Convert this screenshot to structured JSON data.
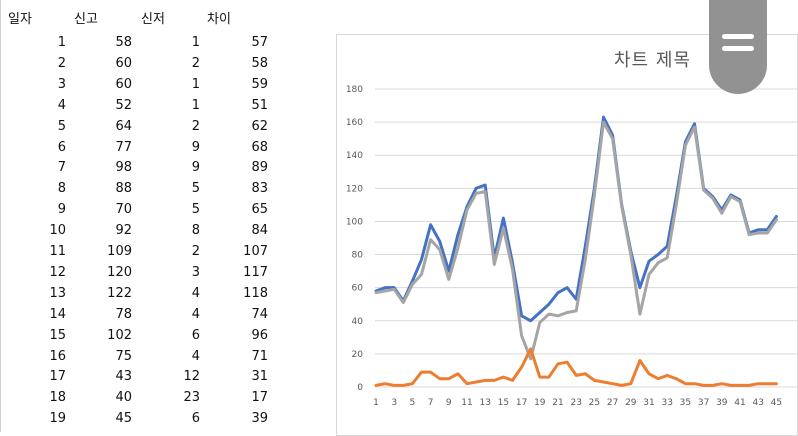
{
  "table": {
    "headers": {
      "day": "일자",
      "col_a": "신고",
      "col_b": "신저",
      "diff": "차이"
    },
    "rows": [
      {
        "day": "1",
        "a": "58",
        "b": "1",
        "diff": "57"
      },
      {
        "day": "2",
        "a": "60",
        "b": "2",
        "diff": "58"
      },
      {
        "day": "3",
        "a": "60",
        "b": "1",
        "diff": "59"
      },
      {
        "day": "4",
        "a": "52",
        "b": "1",
        "diff": "51"
      },
      {
        "day": "5",
        "a": "64",
        "b": "2",
        "diff": "62"
      },
      {
        "day": "6",
        "a": "77",
        "b": "9",
        "diff": "68"
      },
      {
        "day": "7",
        "a": "98",
        "b": "9",
        "diff": "89"
      },
      {
        "day": "8",
        "a": "88",
        "b": "5",
        "diff": "83"
      },
      {
        "day": "9",
        "a": "70",
        "b": "5",
        "diff": "65"
      },
      {
        "day": "10",
        "a": "92",
        "b": "8",
        "diff": "84"
      },
      {
        "day": "11",
        "a": "109",
        "b": "2",
        "diff": "107"
      },
      {
        "day": "12",
        "a": "120",
        "b": "3",
        "diff": "117"
      },
      {
        "day": "13",
        "a": "122",
        "b": "4",
        "diff": "118"
      },
      {
        "day": "14",
        "a": "78",
        "b": "4",
        "diff": "74"
      },
      {
        "day": "15",
        "a": "102",
        "b": "6",
        "diff": "96"
      },
      {
        "day": "16",
        "a": "75",
        "b": "4",
        "diff": "71"
      },
      {
        "day": "17",
        "a": "43",
        "b": "12",
        "diff": "31"
      },
      {
        "day": "18",
        "a": "40",
        "b": "23",
        "diff": "17"
      },
      {
        "day": "19",
        "a": "45",
        "b": "6",
        "diff": "39"
      }
    ]
  },
  "colors": {
    "series_a": "#4472c4",
    "series_b": "#ed7d31",
    "series_diff": "#a5a5a5",
    "grid": "#d9d9d9",
    "axis_text": "#595959",
    "menu_button": "#8d8d8d"
  },
  "chart_data": {
    "type": "line",
    "title": "차트 제목",
    "ylim": [
      0,
      180
    ],
    "yticks": [
      0,
      20,
      40,
      60,
      80,
      100,
      120,
      140,
      160,
      180
    ],
    "x": [
      1,
      2,
      3,
      4,
      5,
      6,
      7,
      8,
      9,
      10,
      11,
      12,
      13,
      14,
      15,
      16,
      17,
      18,
      19,
      20,
      21,
      22,
      23,
      24,
      25,
      26,
      27,
      28,
      29,
      30,
      31,
      32,
      33,
      34,
      35,
      36,
      37,
      38,
      39,
      40,
      41,
      42,
      43,
      44,
      45
    ],
    "xtick_labels": [
      "1",
      "3",
      "5",
      "7",
      "9",
      "11",
      "13",
      "15",
      "17",
      "19",
      "21",
      "23",
      "25",
      "27",
      "29",
      "31",
      "33",
      "35",
      "37",
      "39",
      "41",
      "43",
      "45"
    ],
    "grid": true,
    "legend": "none",
    "series": [
      {
        "values": [
          58,
          60,
          60,
          52,
          64,
          77,
          98,
          88,
          70,
          92,
          109,
          120,
          122,
          78,
          102,
          75,
          43,
          40,
          45,
          50,
          57,
          60,
          53,
          85,
          120,
          163,
          152,
          110,
          82,
          60,
          76,
          80,
          85,
          115,
          148,
          159,
          120,
          115,
          107,
          116,
          113,
          93,
          95,
          95,
          103
        ]
      },
      {
        "values": [
          1,
          2,
          1,
          1,
          2,
          9,
          9,
          5,
          5,
          8,
          2,
          3,
          4,
          4,
          6,
          4,
          12,
          23,
          6,
          6,
          14,
          15,
          7,
          8,
          4,
          3,
          2,
          1,
          2,
          16,
          8,
          5,
          7,
          5,
          2,
          2,
          1,
          1,
          2,
          1,
          1,
          1,
          2,
          2,
          2
        ]
      },
      {
        "values": [
          57,
          58,
          59,
          51,
          62,
          68,
          89,
          83,
          65,
          84,
          107,
          117,
          118,
          74,
          96,
          71,
          31,
          17,
          39,
          44,
          43,
          45,
          46,
          77,
          116,
          160,
          150,
          109,
          80,
          44,
          68,
          75,
          78,
          110,
          146,
          157,
          119,
          114,
          105,
          115,
          112,
          92,
          93,
          93,
          101
        ]
      }
    ]
  }
}
